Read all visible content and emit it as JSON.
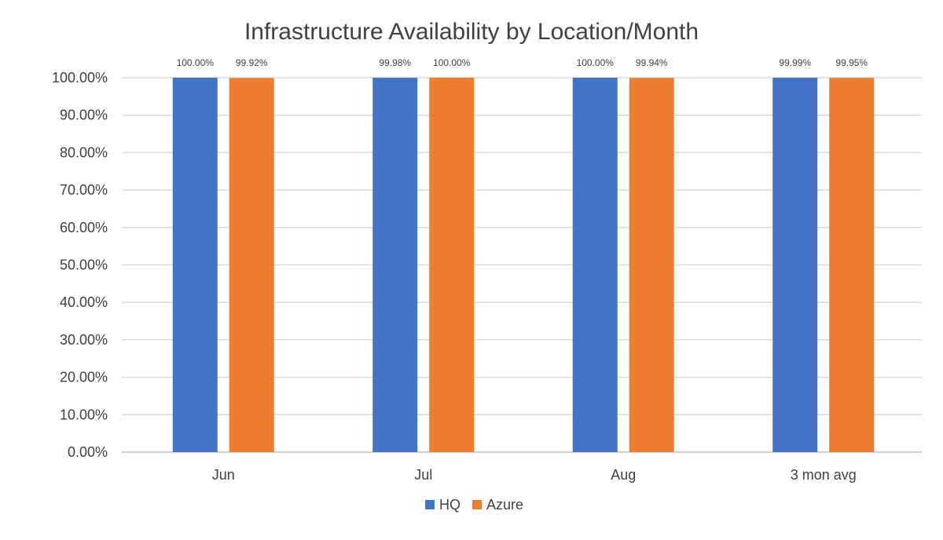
{
  "chart_data": {
    "type": "bar",
    "title": "Infrastructure Availability by Location/Month",
    "xlabel": "",
    "ylabel": "",
    "categories": [
      "Jun",
      "Jul",
      "Aug",
      "3 mon avg"
    ],
    "series": [
      {
        "name": "HQ",
        "color": "#4472C4",
        "values": [
          100.0,
          99.98,
          100.0,
          99.99
        ],
        "labels": [
          "100.00%",
          "99.98%",
          "100.00%",
          "99.99%"
        ]
      },
      {
        "name": "Azure",
        "color": "#ED7D31",
        "values": [
          99.92,
          100.0,
          99.94,
          99.95
        ],
        "labels": [
          "99.92%",
          "100.00%",
          "99.94%",
          "99.95%"
        ]
      }
    ],
    "ylim": [
      0,
      100
    ],
    "yticks": [
      0,
      10,
      20,
      30,
      40,
      50,
      60,
      70,
      80,
      90,
      100
    ],
    "ytick_labels": [
      "0.00%",
      "10.00%",
      "20.00%",
      "30.00%",
      "40.00%",
      "50.00%",
      "60.00%",
      "70.00%",
      "80.00%",
      "90.00%",
      "100.00%"
    ],
    "grid": true,
    "legend_position": "bottom"
  }
}
